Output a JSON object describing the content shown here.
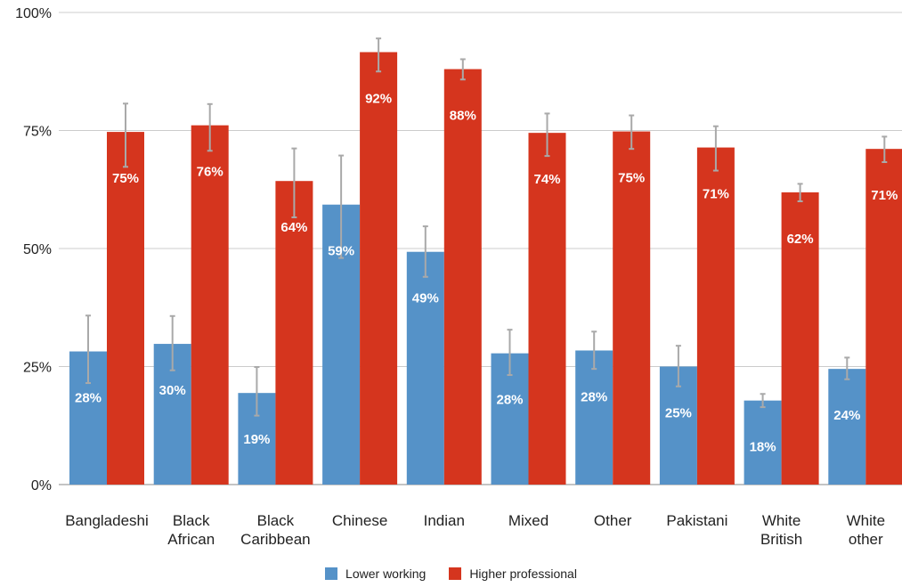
{
  "chart_data": {
    "type": "bar",
    "title": "",
    "xlabel": "",
    "ylabel": "",
    "ylim": [
      0,
      100
    ],
    "yticks": [
      {
        "value": 0,
        "label": "0%"
      },
      {
        "value": 25,
        "label": "25%"
      },
      {
        "value": 50,
        "label": "50%"
      },
      {
        "value": 75,
        "label": "75%"
      },
      {
        "value": 100,
        "label": "100%"
      }
    ],
    "grid": true,
    "legend_position": "bottom",
    "categories": [
      [
        "Bangladeshi"
      ],
      [
        "Black",
        "African"
      ],
      [
        "Black",
        "Caribbean"
      ],
      [
        "Chinese"
      ],
      [
        "Indian"
      ],
      [
        "Mixed"
      ],
      [
        "Other"
      ],
      [
        "Pakistani"
      ],
      [
        "White",
        "British"
      ],
      [
        "White",
        "other"
      ]
    ],
    "series": [
      {
        "name": "Lower working",
        "color": "#5592C8",
        "values": [
          28.2,
          29.8,
          19.4,
          59.3,
          49.3,
          27.8,
          28.4,
          25.0,
          17.8,
          24.5
        ],
        "labels": [
          "28%",
          "30%",
          "19%",
          "59%",
          "49%",
          "28%",
          "28%",
          "25%",
          "18%",
          "24%"
        ],
        "error_low": [
          21.5,
          24.2,
          14.6,
          48.0,
          44.0,
          23.2,
          24.5,
          20.8,
          16.4,
          22.3
        ],
        "error_high": [
          35.8,
          35.7,
          24.9,
          69.7,
          54.7,
          32.8,
          32.4,
          29.4,
          19.2,
          26.9
        ]
      },
      {
        "name": "Higher professional",
        "color": "#D5351E",
        "values": [
          74.7,
          76.1,
          64.3,
          91.6,
          88.0,
          74.5,
          74.8,
          71.4,
          61.9,
          71.1
        ],
        "labels": [
          "75%",
          "76%",
          "64%",
          "92%",
          "88%",
          "74%",
          "75%",
          "71%",
          "62%",
          "71%"
        ],
        "error_low": [
          67.3,
          70.7,
          56.6,
          87.5,
          85.8,
          69.6,
          71.1,
          66.5,
          60.0,
          68.3
        ],
        "error_high": [
          80.7,
          80.6,
          71.2,
          94.5,
          90.1,
          78.6,
          78.2,
          75.9,
          63.7,
          73.7
        ]
      }
    ]
  }
}
